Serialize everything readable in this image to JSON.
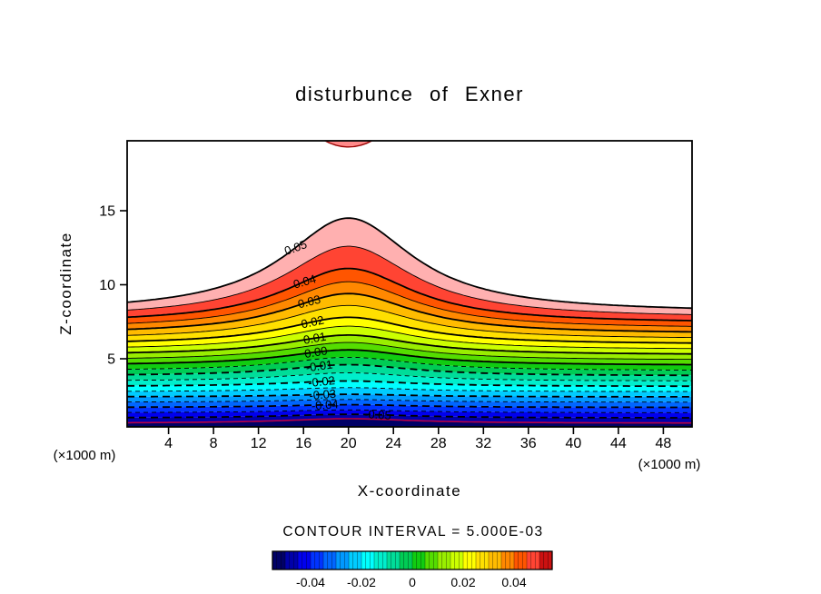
{
  "title": "disturbunce of Exner",
  "contour_note": "CONTOUR INTERVAL = 5.000E-03",
  "axes": {
    "x_label": "X-coordinate",
    "y_label": "Z-coordinate",
    "x_unit_left": "(×1000 m)",
    "x_unit_right": "(×1000 m)",
    "x_ticks": [
      4,
      8,
      12,
      16,
      20,
      24,
      28,
      32,
      36,
      40,
      44,
      48
    ],
    "y_ticks": [
      5,
      10,
      15
    ]
  },
  "colorbar": {
    "range": [
      -0.055,
      0.055
    ],
    "tick_labels": [
      "-0.04",
      "-0.02",
      "0",
      "0.02",
      "0.04"
    ],
    "tick_values": [
      -0.04,
      -0.02,
      0,
      0.02,
      0.04
    ],
    "colors": [
      "#000066",
      "#0000AA",
      "#0000EE",
      "#0033FF",
      "#0066FF",
      "#0099FF",
      "#00CCFF",
      "#00FFFF",
      "#00EECC",
      "#00DD99",
      "#00CC55",
      "#11CC11",
      "#55DD00",
      "#99EE00",
      "#CCFF00",
      "#FFFF00",
      "#FFE000",
      "#FFBB00",
      "#FF8800",
      "#FF5500",
      "#FF4433",
      "#CC1111"
    ]
  },
  "chart_data": {
    "type": "contour",
    "title": "disturbunce of Exner",
    "xlabel": "X-coordinate",
    "ylabel": "Z-coordinate",
    "x_unit": "×1000 m",
    "contour_interval": 0.005,
    "x_range": [
      0.32,
      50.55
    ],
    "y_range": [
      0.4,
      19.72
    ],
    "bump": {
      "center_x": 20,
      "half_width": 7
    },
    "levels": [
      {
        "value": 0.05,
        "label": "0.05",
        "base": 8.1,
        "amp": 6.4,
        "label_x": 15.3,
        "label_rot": -20
      },
      {
        "value": 0.045,
        "base": 7.74,
        "amp": 4.86
      },
      {
        "value": 0.04,
        "label": "0.04",
        "base": 7.39,
        "amp": 3.71,
        "label_x": 16.1,
        "label_rot": -16
      },
      {
        "value": 0.035,
        "base": 7.03,
        "amp": 3.17
      },
      {
        "value": 0.03,
        "label": "0.03",
        "base": 6.68,
        "amp": 2.72,
        "label_x": 16.5,
        "label_rot": -14
      },
      {
        "value": 0.025,
        "base": 6.32,
        "amp": 2.28
      },
      {
        "value": 0.02,
        "label": "0.02",
        "base": 5.97,
        "amp": 1.83,
        "label_x": 16.8,
        "label_rot": -12
      },
      {
        "value": 0.015,
        "base": 5.61,
        "amp": 1.59
      },
      {
        "value": 0.01,
        "label": "0.01",
        "base": 5.26,
        "amp": 1.34,
        "label_x": 17.0,
        "label_rot": -10
      },
      {
        "value": 0.005,
        "base": 4.9,
        "amp": 1.2
      },
      {
        "value": 0.0,
        "label": "0.00",
        "base": 4.55,
        "amp": 1.05,
        "label_x": 17.1,
        "label_rot": -9
      },
      {
        "value": -0.005,
        "base": 4.19,
        "amp": 0.91
      },
      {
        "value": -0.01,
        "label": "-0.01",
        "base": 3.84,
        "amp": 0.76,
        "label_x": 17.4,
        "label_rot": -8
      },
      {
        "value": -0.015,
        "base": 3.48,
        "amp": 0.57
      },
      {
        "value": -0.02,
        "label": "-0.02",
        "base": 3.13,
        "amp": 0.37,
        "label_x": 17.6,
        "label_rot": -6
      },
      {
        "value": -0.025,
        "base": 2.77,
        "amp": 0.28
      },
      {
        "value": -0.03,
        "label": "-0.03",
        "base": 2.42,
        "amp": 0.18,
        "label_x": 17.7,
        "label_rot": -5
      },
      {
        "value": -0.035,
        "base": 2.06,
        "amp": 0.19
      },
      {
        "value": -0.04,
        "label": "-0.04",
        "base": 1.71,
        "amp": 0.19,
        "label_x": 17.9,
        "label_rot": -4
      },
      {
        "value": -0.045,
        "base": 1.35,
        "amp": 0.2
      },
      {
        "value": -0.05,
        "label": "-0.05",
        "base": 1.0,
        "amp": 0.25,
        "label_x": 22.6,
        "label_rot": 3
      },
      {
        "value": -0.055,
        "base": 0.65,
        "amp": 0.3,
        "edge": true
      }
    ],
    "band_colors": [
      "#FFB0B0",
      "#FF4433",
      "#FF5500",
      "#FF8800",
      "#FFBB00",
      "#FFE000",
      "#FFFF00",
      "#CCFF00",
      "#99EE00",
      "#55DD00",
      "#11CC11",
      "#00CC55",
      "#00DD99",
      "#00EECC",
      "#00FFFF",
      "#00CCFF",
      "#0099FF",
      "#0066FF",
      "#0033FF",
      "#0000EE",
      "#0000AA"
    ],
    "below_color": "#000066",
    "bottom_line_color": "#BB0044",
    "top_arc": {
      "x_center": 20,
      "x_half": 2.6,
      "z_edge": 19.95,
      "z_ctrl": 18.65,
      "line_color": "#990000",
      "fill_color": "#FF8A8A"
    }
  }
}
